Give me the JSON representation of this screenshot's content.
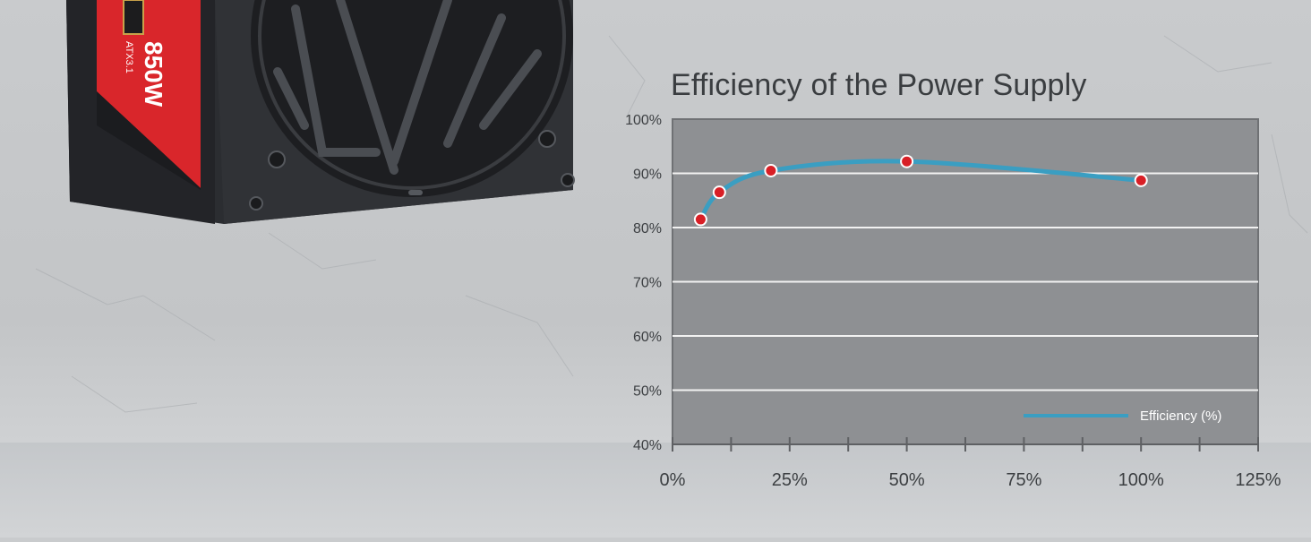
{
  "chart_data": {
    "type": "line",
    "title": "Efficiency of the Power Supply",
    "xlabel": "",
    "ylabel": "",
    "xlim": [
      0,
      125
    ],
    "ylim": [
      40,
      100
    ],
    "x_ticks": [
      "0%",
      "25%",
      "50%",
      "75%",
      "100%",
      "125%"
    ],
    "y_ticks": [
      "40%",
      "50%",
      "60%",
      "70%",
      "80%",
      "90%",
      "100%"
    ],
    "grid": true,
    "legend_position": "bottom-right",
    "series": [
      {
        "name": "Efficiency (%)",
        "color": "#3a9ec2",
        "marker_color": "#d81f26",
        "x": [
          6,
          10,
          21,
          50,
          100
        ],
        "values": [
          81.5,
          86.5,
          90.5,
          92.2,
          88.7
        ]
      }
    ]
  },
  "product": {
    "model_label": "850W",
    "standard_label": "ATX3.1",
    "accent_color": "#d9262b"
  }
}
